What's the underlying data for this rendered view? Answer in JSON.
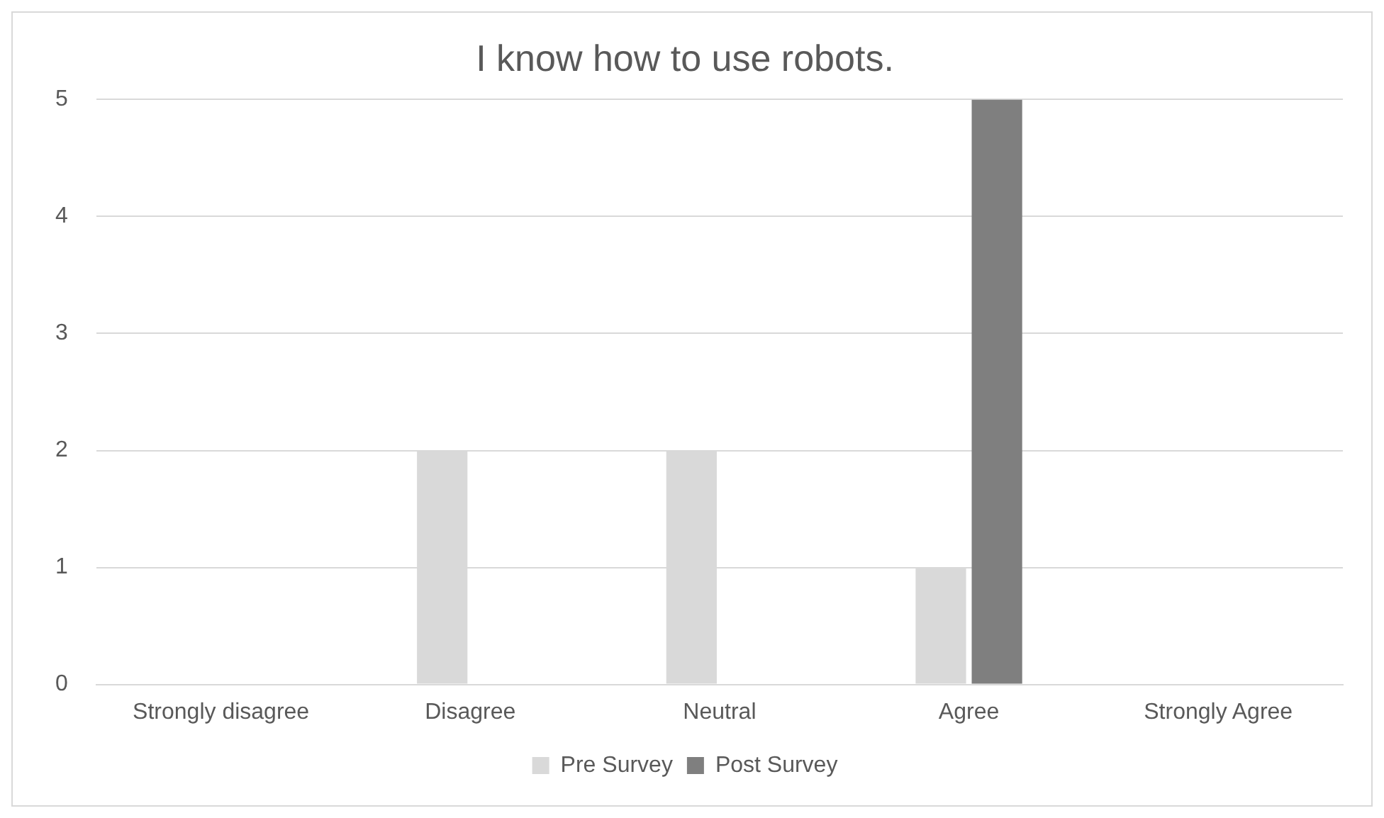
{
  "chart_data": {
    "type": "bar",
    "title": "I know how to use robots.",
    "categories": [
      "Strongly disagree",
      "Disagree",
      "Neutral",
      "Agree",
      "Strongly Agree"
    ],
    "series": [
      {
        "name": "Pre Survey",
        "color": "#d9d9d9",
        "values": [
          0,
          2,
          2,
          1,
          0
        ]
      },
      {
        "name": "Post Survey",
        "color": "#7f7f7f",
        "values": [
          0,
          0,
          0,
          5,
          0
        ]
      }
    ],
    "ylim": [
      0,
      5
    ],
    "yticks": [
      0,
      1,
      2,
      3,
      4,
      5
    ],
    "grid": "y",
    "legend": "bottom"
  }
}
